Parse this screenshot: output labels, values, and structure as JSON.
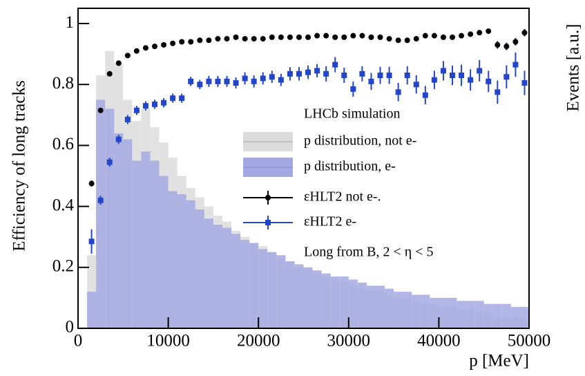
{
  "chart_data": {
    "type": "histogram",
    "xlabel": "p [MeV]",
    "ylabel": "Efficiency of long tracks",
    "y2label": "Events [a.u.]",
    "annotations": [
      "LHCb simulation",
      "Long from B, 2 < η < 5"
    ],
    "xlim": [
      0,
      50000
    ],
    "ylim": [
      0,
      1.05
    ],
    "xticks": [
      0,
      10000,
      20000,
      30000,
      40000,
      50000
    ],
    "yticks": [
      0,
      0.2,
      0.4,
      0.6,
      0.8,
      1
    ],
    "bins": [
      1000,
      2000,
      3000,
      4000,
      5000,
      6000,
      7000,
      8000,
      9000,
      10000,
      11000,
      12000,
      13000,
      14000,
      15000,
      16000,
      17000,
      18000,
      19000,
      20000,
      21000,
      22000,
      23000,
      24000,
      25000,
      26000,
      27000,
      28000,
      29000,
      30000,
      31000,
      32000,
      33000,
      34000,
      35000,
      36000,
      37000,
      38000,
      39000,
      40000,
      41000,
      42000,
      43000,
      44000,
      45000,
      46000,
      47000,
      48000,
      49000,
      50000
    ],
    "x": [
      1500,
      2500,
      3500,
      4500,
      5500,
      6500,
      7500,
      8500,
      9500,
      10500,
      11500,
      12500,
      13500,
      14500,
      15500,
      16500,
      17500,
      18500,
      19500,
      20500,
      21500,
      22500,
      23500,
      24500,
      25500,
      26500,
      27500,
      28500,
      29500,
      30500,
      31500,
      32500,
      33500,
      34500,
      35500,
      36500,
      37500,
      38500,
      39500,
      40500,
      41500,
      42500,
      43500,
      44500,
      45500,
      46500,
      47500,
      48500,
      49500
    ],
    "series": [
      {
        "name": "p distribution, not e-",
        "type": "histogram",
        "color": "#dcdcdc",
        "edge": "#b8b8b8",
        "values": [
          0.24,
          0.83,
          0.91,
          0.87,
          0.75,
          0.68,
          0.72,
          0.66,
          0.61,
          0.56,
          0.5,
          0.46,
          0.43,
          0.4,
          0.37,
          0.35,
          0.32,
          0.3,
          0.28,
          0.27,
          0.25,
          0.23,
          0.22,
          0.2,
          0.19,
          0.18,
          0.17,
          0.16,
          0.15,
          0.14,
          0.13,
          0.12,
          0.12,
          0.11,
          0.1,
          0.1,
          0.09,
          0.08,
          0.08,
          0.07,
          0.07,
          0.06,
          0.06,
          0.05,
          0.05,
          0.04,
          0.04,
          0.04,
          0.03
        ]
      },
      {
        "name": "p distribution, e-",
        "type": "histogram",
        "color": "#a4a9e2",
        "edge": "#8f96dc",
        "values": [
          0.12,
          0.75,
          0.72,
          0.64,
          0.62,
          0.55,
          0.58,
          0.55,
          0.5,
          0.45,
          0.44,
          0.42,
          0.39,
          0.36,
          0.34,
          0.33,
          0.31,
          0.29,
          0.28,
          0.26,
          0.25,
          0.24,
          0.22,
          0.21,
          0.2,
          0.19,
          0.18,
          0.17,
          0.17,
          0.16,
          0.15,
          0.14,
          0.14,
          0.13,
          0.12,
          0.12,
          0.11,
          0.11,
          0.1,
          0.1,
          0.1,
          0.09,
          0.09,
          0.09,
          0.08,
          0.08,
          0.08,
          0.07,
          0.07
        ]
      },
      {
        "name": "εHLT2 not e-.",
        "type": "errorbar",
        "color": "#000000",
        "marker": "circle",
        "values": [
          0.475,
          0.715,
          0.835,
          0.87,
          0.895,
          0.91,
          0.92,
          0.925,
          0.93,
          0.935,
          0.94,
          0.94,
          0.945,
          0.945,
          0.95,
          0.95,
          0.955,
          0.95,
          0.95,
          0.95,
          0.955,
          0.955,
          0.955,
          0.955,
          0.955,
          0.96,
          0.96,
          0.955,
          0.955,
          0.96,
          0.96,
          0.955,
          0.955,
          0.95,
          0.945,
          0.945,
          0.95,
          0.96,
          0.96,
          0.955,
          0.955,
          0.96,
          0.965,
          0.97,
          0.975,
          0.93,
          0.925,
          0.94,
          0.97
        ],
        "errors": [
          0.01,
          0.008,
          0.007,
          0.006,
          0.006,
          0.006,
          0.006,
          0.006,
          0.006,
          0.006,
          0.006,
          0.006,
          0.006,
          0.006,
          0.006,
          0.006,
          0.006,
          0.006,
          0.006,
          0.006,
          0.006,
          0.006,
          0.006,
          0.006,
          0.006,
          0.006,
          0.006,
          0.006,
          0.006,
          0.006,
          0.006,
          0.006,
          0.006,
          0.006,
          0.008,
          0.008,
          0.008,
          0.008,
          0.008,
          0.008,
          0.008,
          0.008,
          0.008,
          0.008,
          0.008,
          0.012,
          0.012,
          0.012,
          0.012
        ]
      },
      {
        "name": "εHLT2 e-",
        "type": "errorbar",
        "color": "#2346c8",
        "marker": "square",
        "values": [
          0.285,
          0.42,
          0.545,
          0.62,
          0.685,
          0.715,
          0.73,
          0.735,
          0.74,
          0.755,
          0.755,
          0.81,
          0.8,
          0.81,
          0.81,
          0.81,
          0.805,
          0.82,
          0.81,
          0.82,
          0.825,
          0.815,
          0.835,
          0.835,
          0.84,
          0.845,
          0.835,
          0.865,
          0.83,
          0.785,
          0.835,
          0.81,
          0.83,
          0.83,
          0.775,
          0.83,
          0.8,
          0.765,
          0.815,
          0.845,
          0.83,
          0.83,
          0.815,
          0.845,
          0.81,
          0.775,
          0.825,
          0.865,
          0.805
        ],
        "errors": [
          0.04,
          0.015,
          0.015,
          0.015,
          0.015,
          0.015,
          0.015,
          0.015,
          0.015,
          0.015,
          0.015,
          0.015,
          0.015,
          0.018,
          0.018,
          0.018,
          0.018,
          0.02,
          0.02,
          0.02,
          0.02,
          0.02,
          0.022,
          0.022,
          0.022,
          0.022,
          0.025,
          0.025,
          0.025,
          0.025,
          0.025,
          0.028,
          0.028,
          0.028,
          0.03,
          0.03,
          0.03,
          0.03,
          0.03,
          0.032,
          0.032,
          0.035,
          0.035,
          0.035,
          0.035,
          0.038,
          0.038,
          0.04,
          0.04
        ]
      }
    ]
  }
}
